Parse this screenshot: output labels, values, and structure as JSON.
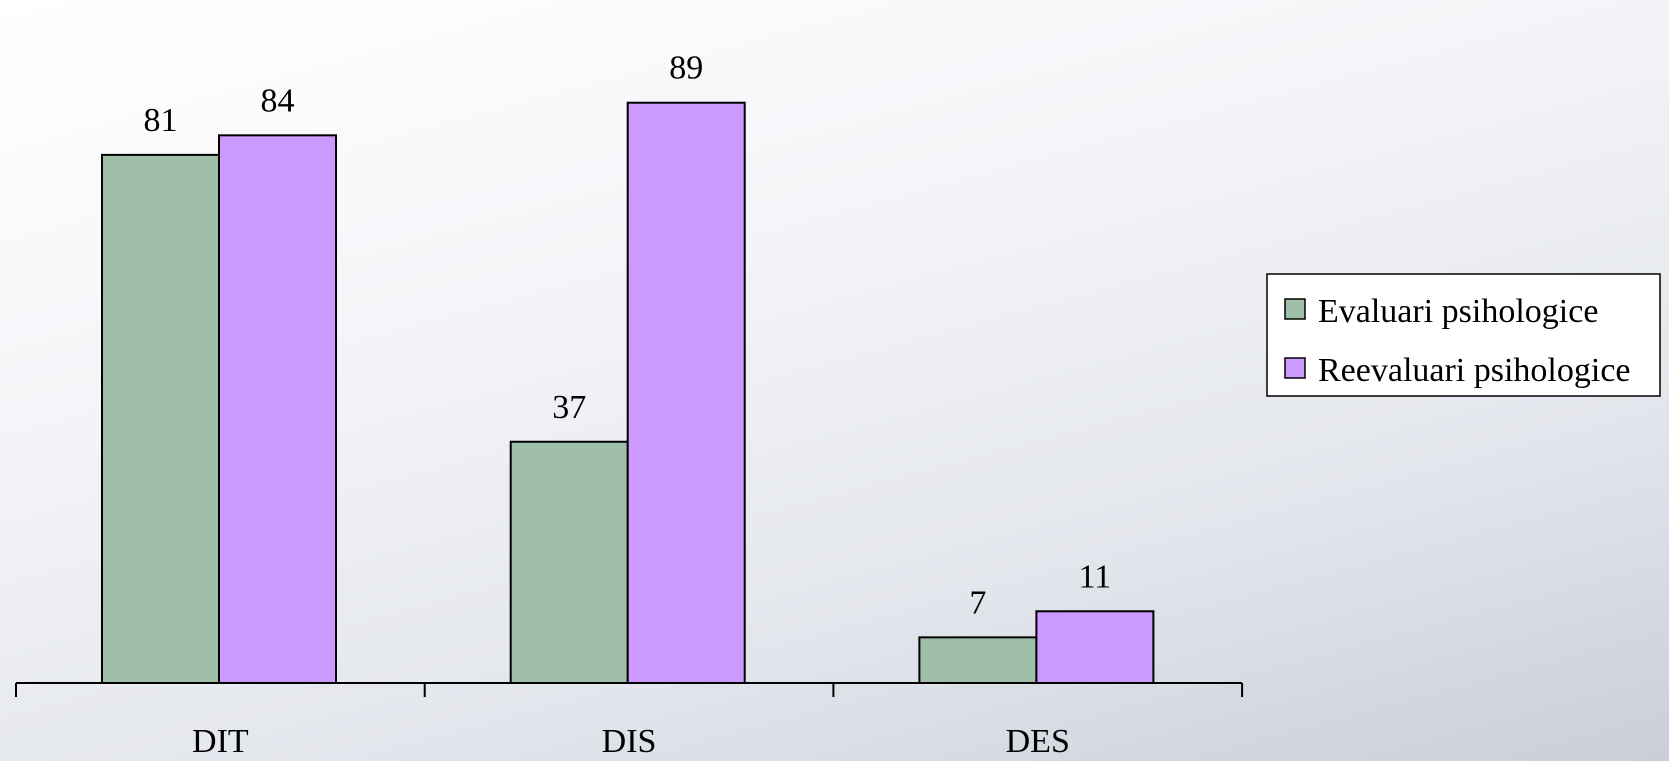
{
  "chart_data": {
    "type": "bar",
    "categories": [
      "DIT",
      "DIS",
      "DES"
    ],
    "series": [
      {
        "name": "Evaluari psihologice",
        "values": [
          81,
          37,
          7
        ],
        "color": "#9fbfa9"
      },
      {
        "name": "Reevaluari psihologice",
        "values": [
          84,
          89,
          11
        ],
        "color": "#cc99ff"
      }
    ],
    "title": "",
    "xlabel": "",
    "ylabel": "",
    "ylim": [
      0,
      90
    ],
    "grid": false,
    "legend": "right",
    "data_labels": true
  },
  "colors": {
    "evaluari": "#9fbfa9",
    "reevaluari": "#cc99ff",
    "outline": "#000000"
  }
}
